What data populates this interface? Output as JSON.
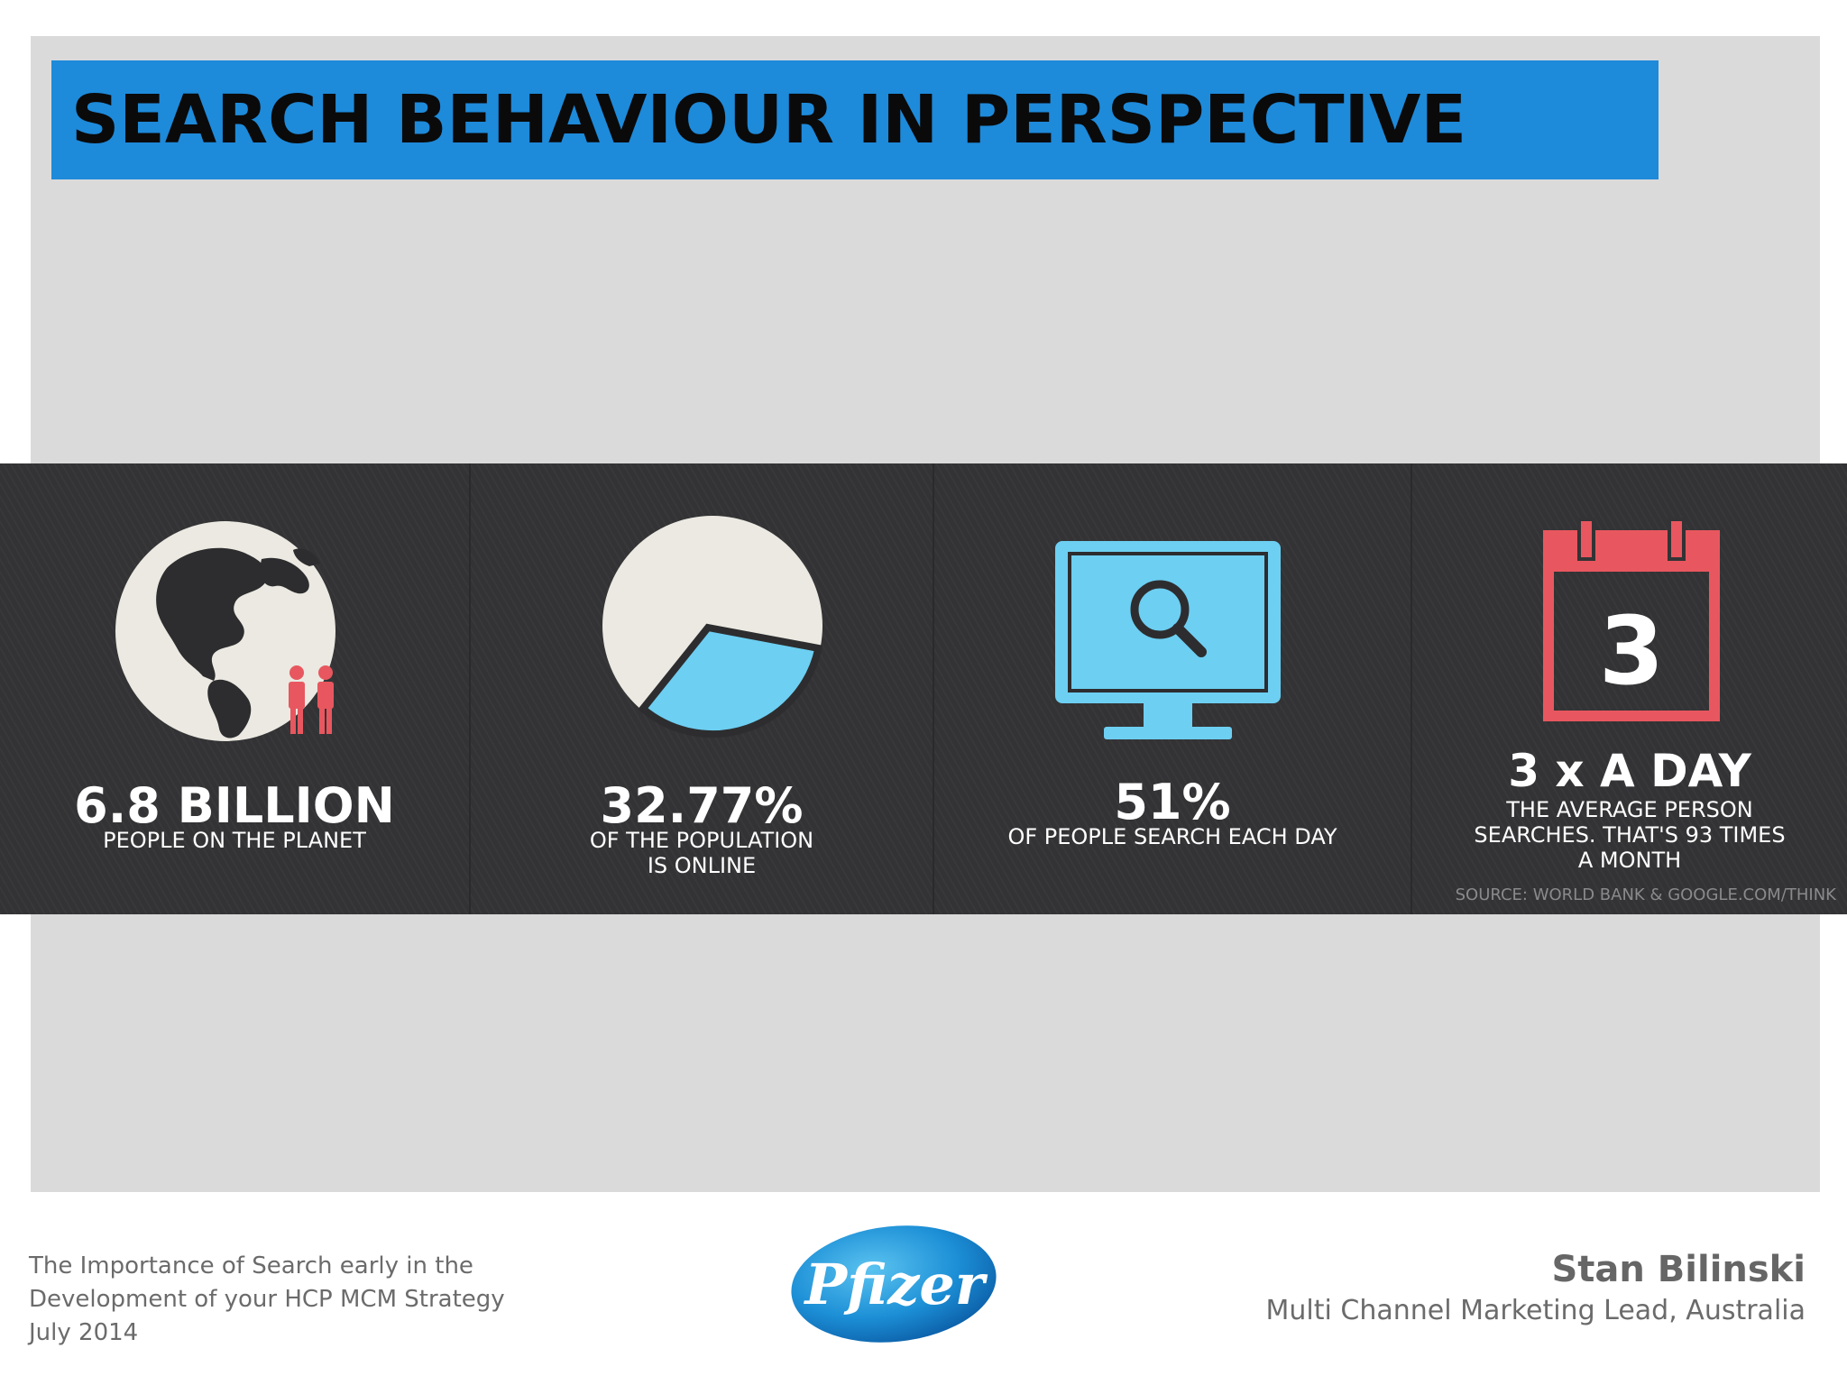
{
  "slide": {
    "title": "SEARCH BEHAVIOUR IN PERSPECTIVE"
  },
  "infographic": {
    "stats": [
      {
        "big": "6.8 BILLION",
        "small": "PEOPLE ON THE PLANET",
        "icon": "globe-icon"
      },
      {
        "big": "32.77%",
        "small": "OF THE POPULATION\nIS ONLINE",
        "icon": "pie-icon",
        "online_fraction": 0.3277
      },
      {
        "big": "51%",
        "small": "OF PEOPLE SEARCH EACH DAY",
        "icon": "monitor-search-icon"
      },
      {
        "big": "3 x A DAY",
        "small": "THE AVERAGE PERSON\nSEARCHES. THAT'S 93 TIMES\nA MONTH",
        "icon": "calendar-icon",
        "calendar_number": "3"
      }
    ],
    "source": "SOURCE: WORLD BANK & GOOGLE.COM/THINK",
    "colors": {
      "accent_blue": "#6dcff2",
      "accent_red": "#e8575f",
      "cream": "#ebe9e1",
      "dark": "#333335"
    }
  },
  "footer": {
    "left_lines": [
      "The Importance of Search early in the",
      "Development of your HCP MCM Strategy",
      "July 2014"
    ],
    "logo_text": "Pfizer",
    "author_name": "Stan Bilinski",
    "author_role": "Multi Channel Marketing Lead, Australia"
  }
}
